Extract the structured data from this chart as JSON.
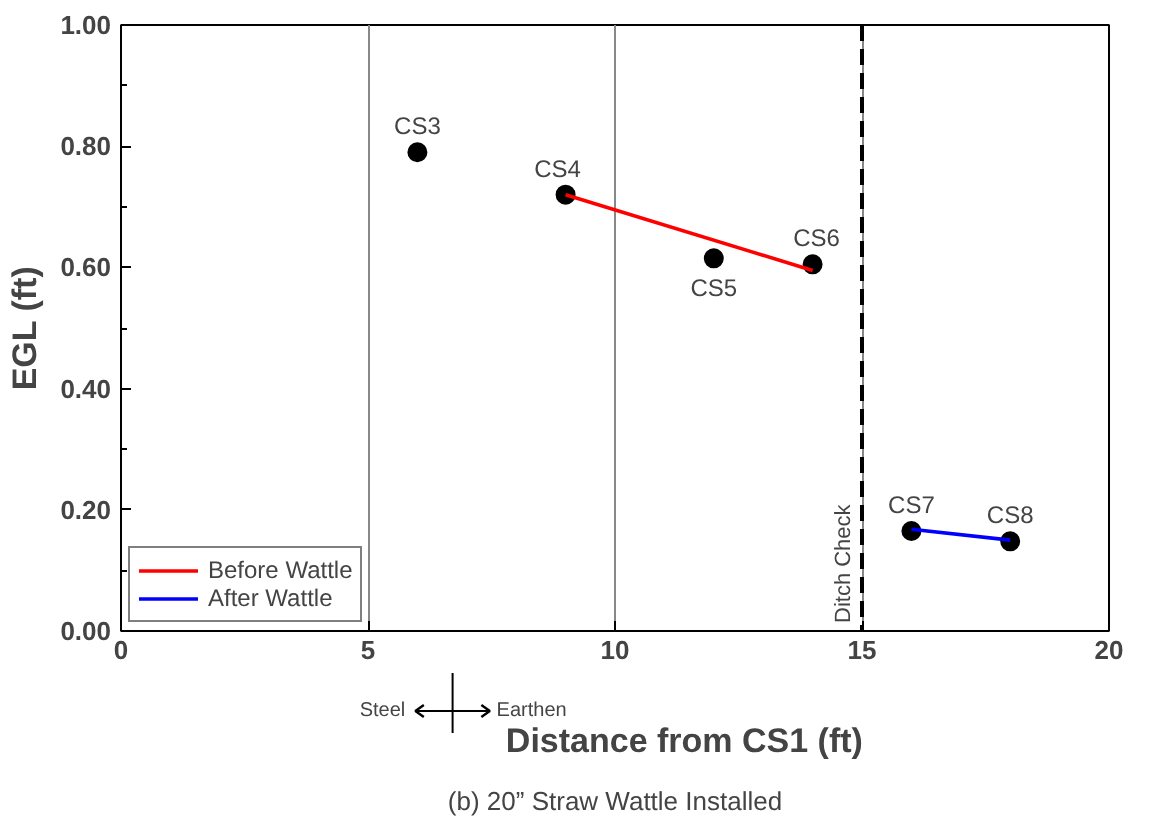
{
  "chart_data": {
    "type": "scatter",
    "xlabel": "Distance from CS1 (ft)",
    "ylabel": "EGL (ft)",
    "xlim": [
      0,
      20
    ],
    "xticks": [
      0,
      5,
      10,
      15,
      20
    ],
    "ylim": [
      0,
      1
    ],
    "yticks": [
      {
        "value": 0,
        "label": "0.00"
      },
      {
        "value": 0.2,
        "label": "0.20"
      },
      {
        "value": 0.4,
        "label": "0.40"
      },
      {
        "value": 0.6,
        "label": "0.60"
      },
      {
        "value": 0.8,
        "label": "0.80"
      },
      {
        "value": 1,
        "label": "1.00"
      }
    ],
    "grid": "x",
    "legend": "bottom left",
    "series": [
      {
        "type": "scatter",
        "color": "#000000",
        "marker": "circle",
        "x": [
          6,
          9,
          12,
          14,
          16,
          18
        ],
        "values": [
          0.79,
          0.72,
          0.615,
          0.605,
          0.165,
          0.148
        ]
      },
      {
        "type": "line",
        "name": "Before Wattle",
        "color": "#ff0000",
        "marker": "none",
        "x": [
          9,
          14
        ],
        "values": [
          0.72,
          0.595
        ]
      },
      {
        "type": "line",
        "name": "After Wattle",
        "color": "#0000ff",
        "marker": "none",
        "x": [
          16,
          18
        ],
        "values": [
          0.168,
          0.15
        ]
      }
    ],
    "ref_lines": [
      {
        "axis": "x",
        "value": 15,
        "label": "Ditch Check",
        "color": "#000000",
        "line_style": "dashed"
      }
    ],
    "annotations": [
      {
        "text": "CS3",
        "x": 6,
        "y": 0.79
      },
      {
        "text": "CS4",
        "x": 9,
        "y": 0.72
      },
      {
        "text": "CS5",
        "x": 12,
        "y": 0.615
      },
      {
        "text": "CS6",
        "x": 14,
        "y": 0.605
      },
      {
        "text": "CS7",
        "x": 16,
        "y": 0.165
      },
      {
        "text": "CS8",
        "x": 18,
        "y": 0.148
      },
      "Steel",
      "Earthen",
      "(b) 20” Straw Wattle Installed"
    ]
  }
}
